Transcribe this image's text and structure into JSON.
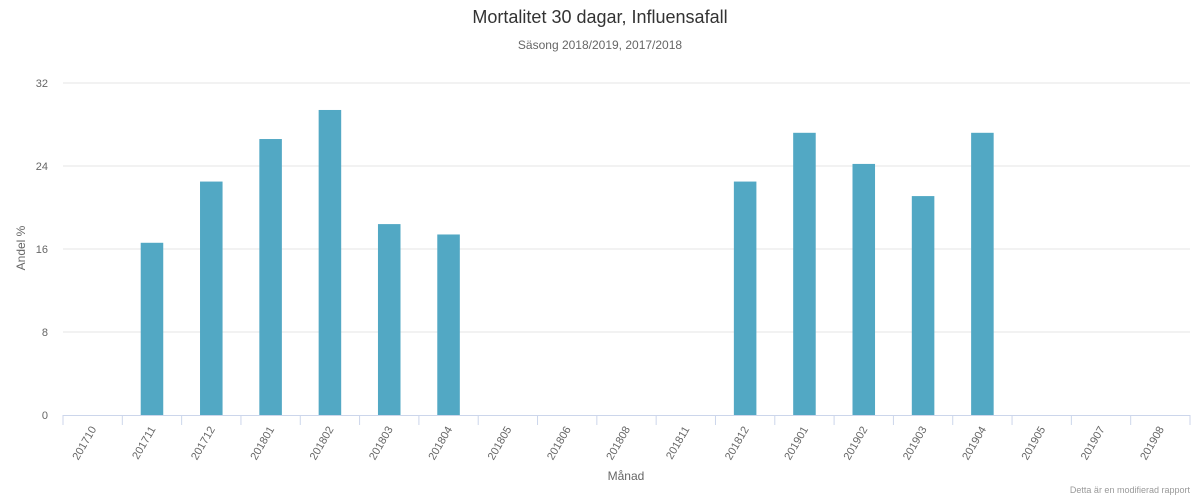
{
  "chart_data": {
    "type": "bar",
    "title": "Mortalitet 30 dagar, Influensafall",
    "subtitle": "Säsong 2018/2019, 2017/2018",
    "xlabel": "Månad",
    "ylabel": "Andel %",
    "credit": "Detta är en modifierad rapport",
    "categories": [
      "201710",
      "201711",
      "201712",
      "201801",
      "201802",
      "201803",
      "201804",
      "201805",
      "201806",
      "201808",
      "201811",
      "201812",
      "201901",
      "201902",
      "201903",
      "201904",
      "201905",
      "201907",
      "201908"
    ],
    "values": [
      0,
      16.6,
      22.5,
      26.6,
      29.4,
      18.4,
      17.4,
      0,
      0,
      0,
      0,
      22.5,
      27.2,
      24.2,
      21.1,
      27.2,
      0,
      0,
      0
    ],
    "ylim": [
      0,
      32
    ],
    "yticks": [
      0,
      8,
      16,
      24,
      32
    ],
    "grid": true,
    "legend": "none",
    "bar_color": "#52a8c4"
  }
}
